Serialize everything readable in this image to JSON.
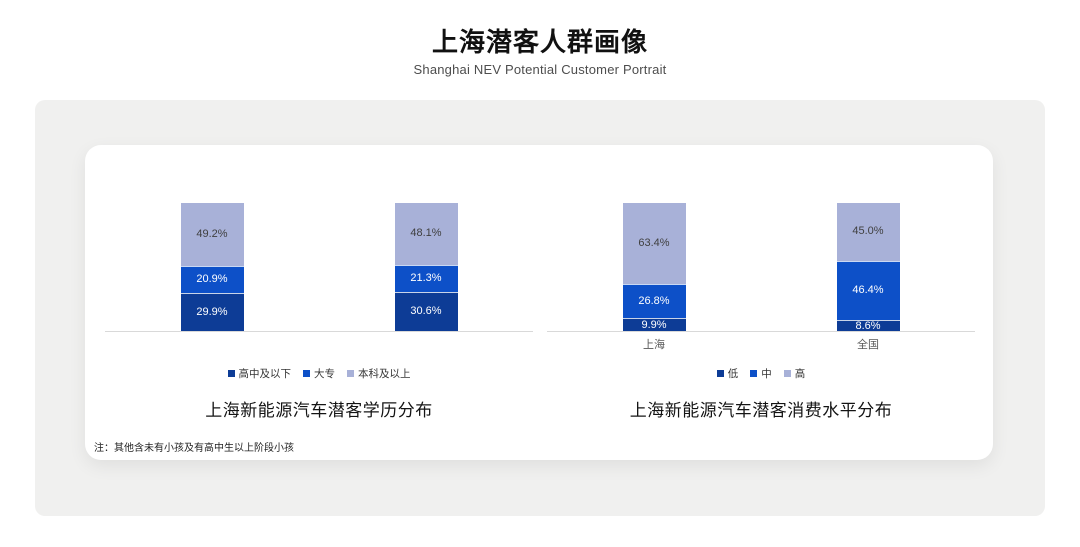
{
  "page": {
    "title": "上海潜客人群画像",
    "subtitle": "Shanghai NEV Potential Customer Portrait",
    "note": "注：其他含未有小孩及有高中生以上阶段小孩"
  },
  "colors": {
    "panel_bg": "#f0f0ef",
    "card_bg": "#ffffff",
    "axis_line": "#d9d9d9",
    "tick_label": "#595959",
    "series_dark_blue": "#0d3c96",
    "series_mid_blue": "#0d50c8",
    "series_light_periwinkle": "#a8b1d8"
  },
  "chart_data": [
    {
      "type": "bar",
      "stacked": true,
      "title": "上海新能源汽车潜客学历分布",
      "categories": [
        "",
        ""
      ],
      "series": [
        {
          "name": "高中及以下",
          "color": "#0d3c96",
          "label_color": "#ffffff",
          "values": [
            29.9,
            30.6
          ]
        },
        {
          "name": "大专",
          "color": "#0d50c8",
          "label_color": "#ffffff",
          "values": [
            20.9,
            21.3
          ]
        },
        {
          "name": "本科及以上",
          "color": "#a8b1d8",
          "label_color": "#3f3f3f",
          "values": [
            49.2,
            48.1
          ]
        }
      ],
      "value_suffix": "%",
      "ylim": [
        0,
        100
      ],
      "grid": false,
      "legend_position": "bottom"
    },
    {
      "type": "bar",
      "stacked": true,
      "title": "上海新能源汽车潜客消费水平分布",
      "categories": [
        "上海",
        "全国"
      ],
      "series": [
        {
          "name": "低",
          "color": "#0d3c96",
          "label_color": "#ffffff",
          "values": [
            9.9,
            8.6
          ]
        },
        {
          "name": "中",
          "color": "#0d50c8",
          "label_color": "#ffffff",
          "values": [
            26.8,
            46.4
          ]
        },
        {
          "name": "高",
          "color": "#a8b1d8",
          "label_color": "#3f3f3f",
          "values": [
            63.4,
            45.0
          ]
        }
      ],
      "value_suffix": "%",
      "ylim": [
        0,
        100
      ],
      "grid": false,
      "legend_position": "bottom"
    }
  ]
}
